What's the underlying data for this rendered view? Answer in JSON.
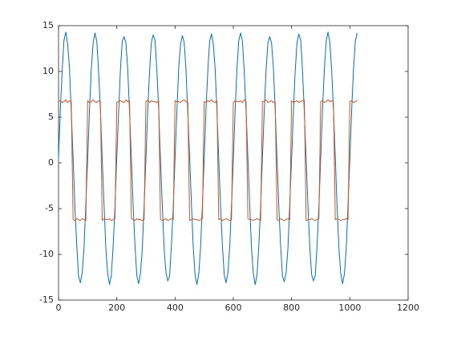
{
  "chart_data": {
    "type": "line",
    "x": [
      0,
      6.25,
      12.5,
      18.75,
      25,
      31.25,
      37.5,
      43.75,
      50,
      56.25,
      62.5,
      68.75,
      75,
      81.25,
      87.5,
      93.75,
      100,
      106.25,
      112.5,
      118.75,
      125,
      131.25,
      137.5,
      143.75,
      150,
      156.25,
      162.5,
      168.75,
      175,
      181.25,
      187.5,
      193.75,
      200,
      206.25,
      212.5,
      218.75,
      225,
      231.25,
      237.5,
      243.75,
      250,
      256.25,
      262.5,
      268.75,
      275,
      281.25,
      287.5,
      293.75,
      300,
      306.25,
      312.5,
      318.75,
      325,
      331.25,
      337.5,
      343.75,
      350,
      356.25,
      362.5,
      368.75,
      375,
      381.25,
      387.5,
      393.75,
      400,
      406.25,
      412.5,
      418.75,
      425,
      431.25,
      437.5,
      443.75,
      450,
      456.25,
      462.5,
      468.75,
      475,
      481.25,
      487.5,
      493.75,
      500,
      506.25,
      512.5,
      518.75,
      525,
      531.25,
      537.5,
      543.75,
      550,
      556.25,
      562.5,
      568.75,
      575,
      581.25,
      587.5,
      593.75,
      600,
      606.25,
      612.5,
      618.75,
      625,
      631.25,
      637.5,
      643.75,
      650,
      656.25,
      662.5,
      668.75,
      675,
      681.25,
      687.5,
      693.75,
      700,
      706.25,
      712.5,
      718.75,
      725,
      731.25,
      737.5,
      743.75,
      750,
      756.25,
      762.5,
      768.75,
      775,
      781.25,
      787.5,
      793.75,
      800,
      806.25,
      812.5,
      818.75,
      825,
      831.25,
      837.5,
      843.75,
      850,
      856.25,
      862.5,
      868.75,
      875,
      881.25,
      887.5,
      893.75,
      900,
      906.25,
      912.5,
      918.75,
      925,
      931.25,
      937.5,
      943.75,
      950,
      956.25,
      962.5,
      968.75,
      975,
      981.25,
      987.5,
      993.75,
      1000,
      1006.25,
      1012.5,
      1018.75,
      1025
    ],
    "series": [
      {
        "color": "#0072bd",
        "values": [
          0.5,
          5.9,
          10.1,
          13.4,
          14.3,
          13.0,
          10.4,
          5.5,
          0.6,
          -4.9,
          -9.0,
          -12.4,
          -13.1,
          -12.0,
          -9.3,
          -4.5,
          0.3,
          5.8,
          10.3,
          13.1,
          14.2,
          13.3,
          10.0,
          5.9,
          0.4,
          -4.6,
          -9.4,
          -12.1,
          -13.3,
          -12.3,
          -9.1,
          -4.8,
          0.7,
          5.5,
          10.2,
          13.3,
          13.8,
          13.1,
          10.3,
          5.6,
          0.5,
          -4.8,
          -9.1,
          -12.3,
          -13.2,
          -12.1,
          -9.4,
          -4.6,
          0.4,
          5.8,
          10.0,
          13.2,
          14.0,
          13.4,
          10.1,
          5.8,
          0.3,
          -4.7,
          -9.3,
          -12.0,
          -12.9,
          -12.4,
          -9.0,
          -4.9,
          0.6,
          5.6,
          10.4,
          13.0,
          13.9,
          13.2,
          10.2,
          5.4,
          0.7,
          -4.5,
          -9.2,
          -12.3,
          -13.3,
          -12.2,
          -9.3,
          -4.7,
          0.5,
          5.9,
          10.1,
          13.3,
          14.1,
          13.0,
          10.3,
          5.7,
          0.4,
          -4.8,
          -9.0,
          -12.2,
          -13.1,
          -12.1,
          -9.2,
          -4.6,
          0.3,
          5.7,
          10.3,
          13.4,
          14.2,
          13.3,
          10.0,
          5.6,
          0.6,
          -4.6,
          -9.4,
          -12.1,
          -13.3,
          -12.3,
          -9.1,
          -4.8,
          0.6,
          5.8,
          10.2,
          13.1,
          13.8,
          13.1,
          10.4,
          5.8,
          0.5,
          -4.9,
          -9.1,
          -12.4,
          -13.0,
          -12.0,
          -9.3,
          -4.5,
          0.4,
          5.6,
          10.1,
          13.2,
          14.1,
          13.4,
          10.1,
          5.5,
          0.3,
          -4.7,
          -9.2,
          -12.2,
          -12.9,
          -12.3,
          -9.0,
          -4.7,
          0.5,
          5.9,
          10.3,
          13.3,
          14.3,
          13.2,
          10.2,
          5.7,
          0.6,
          -4.8,
          -9.3,
          -12.1,
          -13.2,
          -12.2,
          -9.4,
          -4.6,
          0.5,
          5.8,
          10.2,
          13.3,
          14.2
        ]
      },
      {
        "color": "#d95319",
        "values": [
          6.7,
          6.8,
          6.6,
          6.7,
          6.9,
          6.6,
          6.8,
          6.7,
          -6.2,
          -6.3,
          -6.1,
          -6.2,
          -6.3,
          -6.1,
          -6.2,
          -6.3,
          6.8,
          6.6,
          6.7,
          6.9,
          6.7,
          6.6,
          6.8,
          6.7,
          -6.3,
          -6.1,
          -6.2,
          -6.2,
          -6.1,
          -6.3,
          -6.2,
          -6.1,
          6.6,
          6.7,
          6.8,
          6.7,
          6.6,
          6.9,
          6.7,
          6.8,
          -6.1,
          -6.2,
          -6.3,
          -6.1,
          -6.2,
          -6.2,
          -6.3,
          -6.2,
          6.7,
          6.9,
          6.6,
          6.8,
          6.7,
          6.7,
          6.6,
          6.8,
          -6.2,
          -6.3,
          -6.2,
          -6.1,
          -6.3,
          -6.2,
          -6.1,
          -6.2,
          6.8,
          6.7,
          6.7,
          6.6,
          6.8,
          6.9,
          6.7,
          6.6,
          -6.3,
          -6.2,
          -6.1,
          -6.2,
          -6.2,
          -6.3,
          -6.2,
          -6.1,
          6.7,
          6.6,
          6.8,
          6.7,
          6.9,
          6.7,
          6.6,
          6.8,
          -6.2,
          -6.1,
          -6.3,
          -6.2,
          -6.1,
          -6.2,
          -6.3,
          -6.2,
          6.6,
          6.8,
          6.7,
          6.7,
          6.8,
          6.6,
          6.9,
          6.7,
          -6.1,
          -6.2,
          -6.2,
          -6.3,
          -6.2,
          -6.1,
          -6.2,
          -6.3,
          6.7,
          6.7,
          6.9,
          6.6,
          6.7,
          6.8,
          6.6,
          6.7,
          -6.2,
          -6.3,
          -6.1,
          -6.2,
          -6.3,
          -6.2,
          -6.1,
          -6.2,
          6.8,
          6.6,
          6.7,
          6.8,
          6.6,
          6.7,
          6.8,
          6.9,
          -6.3,
          -6.2,
          -6.2,
          -6.1,
          -6.2,
          -6.3,
          -6.2,
          -6.1,
          6.7,
          6.8,
          6.6,
          6.7,
          6.9,
          6.7,
          6.8,
          6.6,
          -6.2,
          -6.1,
          -6.2,
          -6.3,
          -6.2,
          -6.2,
          -6.1,
          -6.2,
          6.7,
          6.8,
          6.6,
          6.7,
          6.8
        ]
      }
    ],
    "xlim": [
      0,
      1200
    ],
    "xticks": [
      0,
      200,
      400,
      600,
      800,
      1000,
      1200
    ],
    "ylim": [
      -15,
      15
    ],
    "yticks": [
      -15,
      -10,
      -5,
      0,
      5,
      10,
      15
    ]
  }
}
